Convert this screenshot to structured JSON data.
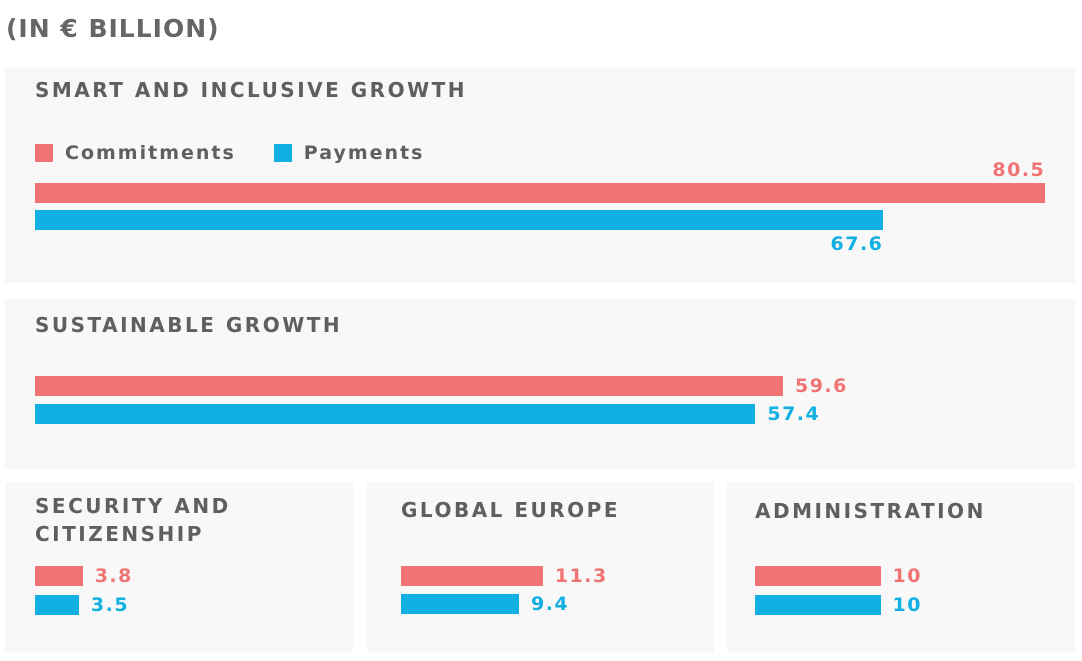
{
  "chart_data": {
    "type": "bar",
    "unit_label": "(IN € BILLION)",
    "legend": {
      "commitments": "Commitments",
      "payments": "Payments",
      "placement": "top-left"
    },
    "colors": {
      "commitments": "#f07474",
      "payments": "#12b0e2"
    },
    "categories": [
      {
        "title": "SMART AND INCLUSIVE GROWTH",
        "commitments": 80.5,
        "payments": 67.6,
        "commitments_label": "80.5",
        "payments_label": "67.6"
      },
      {
        "title": "SUSTAINABLE GROWTH",
        "commitments": 59.6,
        "payments": 57.4,
        "commitments_label": "59.6",
        "payments_label": "57.4"
      },
      {
        "title": "SECURITY AND CITIZENSHIP",
        "commitments": 3.8,
        "payments": 3.5,
        "commitments_label": "3.8",
        "payments_label": "3.5"
      },
      {
        "title": "GLOBAL EUROPE",
        "commitments": 11.3,
        "payments": 9.4,
        "commitments_label": "11.3",
        "payments_label": "9.4"
      },
      {
        "title": "ADMINISTRATION",
        "commitments": 10,
        "payments": 10,
        "commitments_label": "10",
        "payments_label": "10"
      }
    ]
  }
}
